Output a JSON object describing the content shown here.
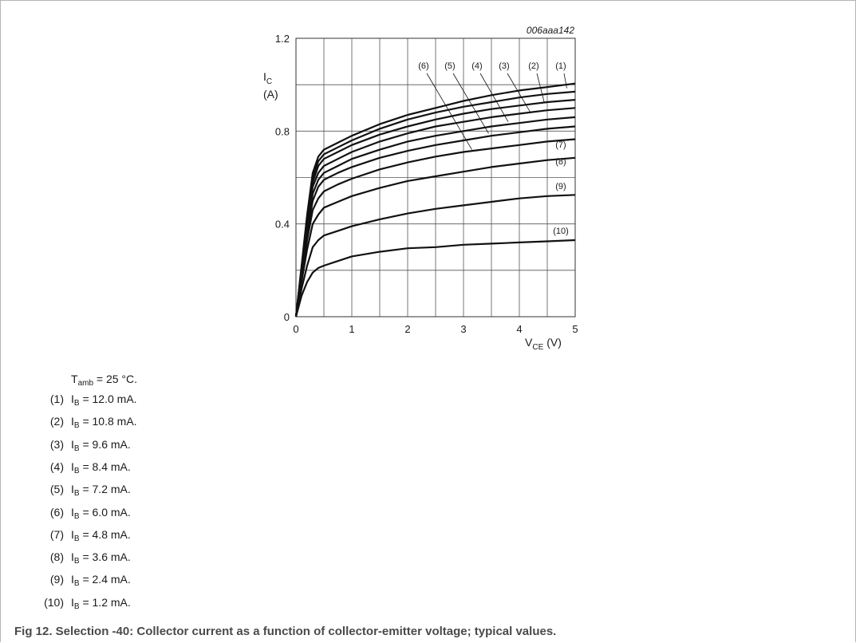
{
  "chart_data": {
    "type": "line",
    "figure_id": "006aaa142",
    "ylabel": {
      "symbol": "I",
      "sub": "C",
      "unit": "(A)"
    },
    "xlabel": {
      "symbol": "V",
      "sub": "CE",
      "unit": "(V)"
    },
    "xlim": [
      0,
      5
    ],
    "ylim": [
      0,
      1.2
    ],
    "xticks": [
      "0",
      "1",
      "2",
      "3",
      "4",
      "5"
    ],
    "yticks": [
      {
        "value": 0,
        "label": "0"
      },
      {
        "value": 0.4,
        "label": "0.4"
      },
      {
        "value": 0.8,
        "label": "0.8"
      },
      {
        "value": 1.2,
        "label": "1.2"
      }
    ],
    "x": [
      0,
      0.1,
      0.2,
      0.3,
      0.4,
      0.5,
      0.75,
      1,
      1.5,
      2,
      2.5,
      3,
      3.5,
      4,
      4.5,
      5
    ],
    "series": [
      {
        "name": "(1)",
        "values": [
          0,
          0.22,
          0.44,
          0.62,
          0.69,
          0.72,
          0.75,
          0.78,
          0.83,
          0.87,
          0.9,
          0.93,
          0.955,
          0.975,
          0.99,
          1.005
        ]
      },
      {
        "name": "(2)",
        "values": [
          0,
          0.21,
          0.42,
          0.6,
          0.67,
          0.7,
          0.73,
          0.76,
          0.81,
          0.85,
          0.88,
          0.905,
          0.925,
          0.945,
          0.96,
          0.97
        ]
      },
      {
        "name": "(3)",
        "values": [
          0,
          0.205,
          0.41,
          0.58,
          0.65,
          0.68,
          0.71,
          0.74,
          0.785,
          0.82,
          0.85,
          0.875,
          0.895,
          0.91,
          0.925,
          0.935
        ]
      },
      {
        "name": "(4)",
        "values": [
          0,
          0.2,
          0.4,
          0.56,
          0.62,
          0.65,
          0.68,
          0.71,
          0.755,
          0.79,
          0.82,
          0.84,
          0.86,
          0.875,
          0.89,
          0.9
        ]
      },
      {
        "name": "(5)",
        "values": [
          0,
          0.19,
          0.38,
          0.53,
          0.59,
          0.62,
          0.65,
          0.68,
          0.72,
          0.755,
          0.78,
          0.8,
          0.82,
          0.835,
          0.85,
          0.86
        ]
      },
      {
        "name": "(6)",
        "values": [
          0,
          0.18,
          0.36,
          0.5,
          0.56,
          0.59,
          0.62,
          0.645,
          0.685,
          0.715,
          0.74,
          0.76,
          0.78,
          0.795,
          0.81,
          0.82
        ]
      },
      {
        "name": "(7)",
        "values": [
          0,
          0.17,
          0.33,
          0.46,
          0.51,
          0.54,
          0.57,
          0.595,
          0.635,
          0.665,
          0.69,
          0.71,
          0.725,
          0.74,
          0.755,
          0.765
        ]
      },
      {
        "name": "(8)",
        "values": [
          0,
          0.15,
          0.29,
          0.4,
          0.44,
          0.47,
          0.495,
          0.52,
          0.555,
          0.585,
          0.605,
          0.625,
          0.645,
          0.66,
          0.675,
          0.685
        ]
      },
      {
        "name": "(9)",
        "values": [
          0,
          0.12,
          0.22,
          0.3,
          0.33,
          0.35,
          0.37,
          0.39,
          0.42,
          0.445,
          0.465,
          0.48,
          0.495,
          0.51,
          0.52,
          0.525
        ]
      },
      {
        "name": "(10)",
        "values": [
          0,
          0.09,
          0.15,
          0.19,
          0.21,
          0.22,
          0.24,
          0.26,
          0.28,
          0.295,
          0.3,
          0.31,
          0.315,
          0.32,
          0.325,
          0.33
        ]
      }
    ],
    "grid": true,
    "legend": "inline labels"
  },
  "notes": {
    "tamb": {
      "symbol": "T",
      "sub": "amb",
      "rest": "= 25 °C."
    },
    "items": [
      {
        "num": "(1)",
        "symbol": "I",
        "sub": "B",
        "rest": "= 12.0 mA."
      },
      {
        "num": "(2)",
        "symbol": "I",
        "sub": "B",
        "rest": "= 10.8 mA."
      },
      {
        "num": "(3)",
        "symbol": "I",
        "sub": "B",
        "rest": "= 9.6 mA."
      },
      {
        "num": "(4)",
        "symbol": "I",
        "sub": "B",
        "rest": "= 8.4 mA."
      },
      {
        "num": "(5)",
        "symbol": "I",
        "sub": "B",
        "rest": "= 7.2 mA."
      },
      {
        "num": "(6)",
        "symbol": "I",
        "sub": "B",
        "rest": "= 6.0 mA."
      },
      {
        "num": "(7)",
        "symbol": "I",
        "sub": "B",
        "rest": "= 4.8 mA."
      },
      {
        "num": "(8)",
        "symbol": "I",
        "sub": "B",
        "rest": "= 3.6 mA."
      },
      {
        "num": "(9)",
        "symbol": "I",
        "sub": "B",
        "rest": "= 2.4 mA."
      },
      {
        "num": "(10)",
        "symbol": "I",
        "sub": "B",
        "rest": "= 1.2 mA."
      }
    ]
  },
  "caption": "Fig 12. Selection -40: Collector current as a function of collector-emitter voltage; typical values."
}
